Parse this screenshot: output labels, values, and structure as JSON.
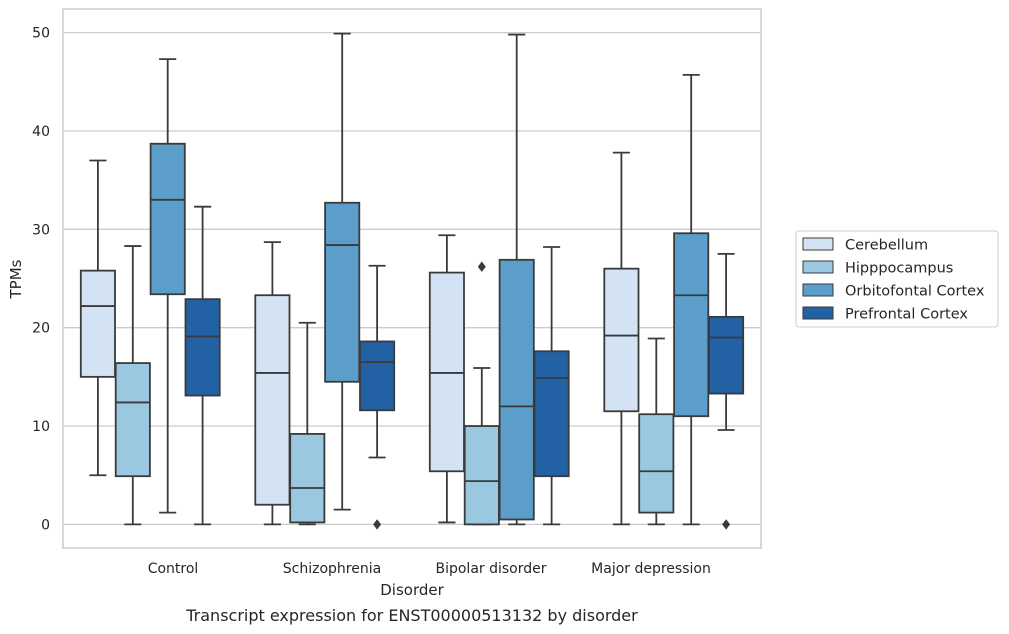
{
  "chart_data": {
    "type": "box",
    "xlabel": "Disorder",
    "ylabel": "TPMs",
    "caption": "Transcript expression for ENST00000513132 by disorder",
    "categories": [
      "Control",
      "Schizophrenia",
      "Bipolar disorder",
      "Major depression"
    ],
    "ylim": [
      -2.4,
      52.4
    ],
    "yticks": [
      0,
      10,
      20,
      30,
      40,
      50
    ],
    "grid": "horizontal",
    "legend_position": "right",
    "series": [
      {
        "name": "Cerebellum",
        "color": "#d3e3f3",
        "boxes": [
          {
            "whisker_low": 5.0,
            "q1": 15.0,
            "median": 22.2,
            "q3": 25.8,
            "whisker_high": 37.0,
            "outliers": []
          },
          {
            "whisker_low": 0.0,
            "q1": 2.0,
            "median": 15.4,
            "q3": 23.3,
            "whisker_high": 28.7,
            "outliers": []
          },
          {
            "whisker_low": 0.2,
            "q1": 5.4,
            "median": 15.4,
            "q3": 25.6,
            "whisker_high": 29.4,
            "outliers": []
          },
          {
            "whisker_low": 0.0,
            "q1": 11.5,
            "median": 19.2,
            "q3": 26.0,
            "whisker_high": 37.8,
            "outliers": []
          }
        ]
      },
      {
        "name": "Hipppocampus",
        "color": "#9ac8e0",
        "boxes": [
          {
            "whisker_low": 0.0,
            "q1": 4.9,
            "median": 12.4,
            "q3": 16.4,
            "whisker_high": 28.3,
            "outliers": []
          },
          {
            "whisker_low": 0.0,
            "q1": 0.2,
            "median": 3.7,
            "q3": 9.2,
            "whisker_high": 20.5,
            "outliers": []
          },
          {
            "whisker_low": 0.0,
            "q1": 0.0,
            "median": 4.4,
            "q3": 10.0,
            "whisker_high": 15.9,
            "outliers": [
              26.2
            ]
          },
          {
            "whisker_low": 0.0,
            "q1": 1.2,
            "median": 5.4,
            "q3": 11.2,
            "whisker_high": 18.9,
            "outliers": []
          }
        ]
      },
      {
        "name": "Orbitofontal Cortex",
        "color": "#5a9ec9",
        "boxes": [
          {
            "whisker_low": 1.2,
            "q1": 23.4,
            "median": 33.0,
            "q3": 38.7,
            "whisker_high": 47.3,
            "outliers": []
          },
          {
            "whisker_low": 1.5,
            "q1": 14.5,
            "median": 28.4,
            "q3": 32.7,
            "whisker_high": 49.9,
            "outliers": []
          },
          {
            "whisker_low": 0.0,
            "q1": 0.5,
            "median": 12.0,
            "q3": 26.9,
            "whisker_high": 49.8,
            "outliers": []
          },
          {
            "whisker_low": 0.0,
            "q1": 11.0,
            "median": 23.3,
            "q3": 29.6,
            "whisker_high": 45.7,
            "outliers": []
          }
        ]
      },
      {
        "name": "Prefrontal Cortex",
        "color": "#2361a5",
        "boxes": [
          {
            "whisker_low": 0.0,
            "q1": 13.1,
            "median": 19.1,
            "q3": 22.9,
            "whisker_high": 32.3,
            "outliers": []
          },
          {
            "whisker_low": 6.8,
            "q1": 11.6,
            "median": 16.5,
            "q3": 18.6,
            "whisker_high": 26.3,
            "outliers": [
              0.0
            ]
          },
          {
            "whisker_low": 0.0,
            "q1": 4.9,
            "median": 14.9,
            "q3": 17.6,
            "whisker_high": 28.2,
            "outliers": []
          },
          {
            "whisker_low": 9.6,
            "q1": 13.3,
            "median": 19.0,
            "q3": 21.1,
            "whisker_high": 27.5,
            "outliers": [
              0.0
            ]
          }
        ]
      }
    ]
  }
}
